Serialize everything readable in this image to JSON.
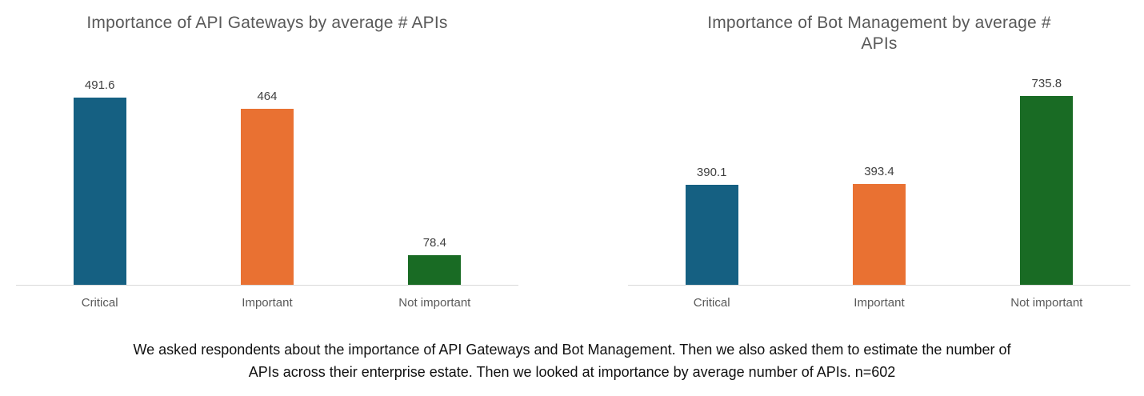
{
  "colors": {
    "bar_blue": "#156082",
    "bar_orange": "#E97132",
    "bar_green": "#196B24",
    "title_gray": "#595959",
    "data_label_gray": "#404040",
    "axis_line_gray": "#D9D9D9",
    "caption_black": "#111111"
  },
  "chart_data": [
    {
      "type": "bar",
      "title": "Importance of API Gateways by average # APIs",
      "categories": [
        "Critical",
        "Important",
        "Not important"
      ],
      "values": [
        491.6,
        464,
        78.4
      ],
      "value_labels": [
        "491.6",
        "464",
        "78.4"
      ],
      "bar_colors": [
        "#156082",
        "#E97132",
        "#196B24"
      ],
      "xlabel": "",
      "ylabel": "",
      "ylim": [
        0,
        560
      ],
      "grid": false,
      "legend": "none",
      "data_labels": true
    },
    {
      "type": "bar",
      "title": "Importance of Bot Management by average # APIs",
      "categories": [
        "Critical",
        "Important",
        "Not important"
      ],
      "values": [
        390.1,
        393.4,
        735.8
      ],
      "value_labels": [
        "390.1",
        "393.4",
        "735.8"
      ],
      "bar_colors": [
        "#156082",
        "#E97132",
        "#196B24"
      ],
      "xlabel": "",
      "ylabel": "",
      "ylim": [
        0,
        830
      ],
      "grid": false,
      "legend": "none",
      "data_labels": true
    }
  ],
  "caption": {
    "lines": [
      "We asked respondents about the importance of API Gateways and Bot Management. Then we also asked them to estimate the number of",
      "APIs across their enterprise estate. Then we looked at importance by average number of APIs. n=602"
    ],
    "full_text": "We asked respondents about the importance of API Gateways and Bot Management. Then we also asked them to estimate the number of APIs across their enterprise estate. Then we looked at importance by average number of APIs. n=602"
  }
}
